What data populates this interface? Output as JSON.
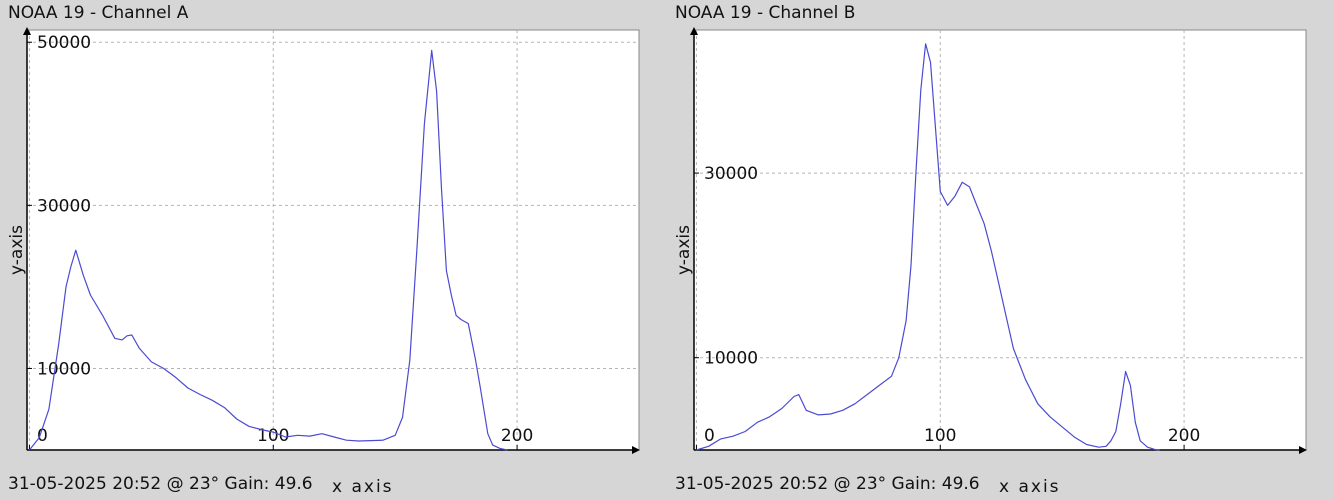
{
  "chart_data": [
    {
      "type": "line",
      "title": "NOAA 19 - Channel A",
      "footer": "31-05-2025 20:52 @ 23° Gain: 49.6",
      "xlabel": "x axis",
      "ylabel": "y-axis",
      "xlim": [
        -1,
        250
      ],
      "ylim": [
        0,
        51500
      ],
      "x_ticks": [
        0,
        100,
        200
      ],
      "x_tick_labels": [
        "0",
        "100",
        "200"
      ],
      "y_ticks": [
        0,
        10000,
        30000,
        50000
      ],
      "y_tick_labels": [
        "0",
        "10000",
        "30000",
        "50000"
      ],
      "grid": true,
      "line_color": "#4b4bd2",
      "series": [
        {
          "x": [
            0,
            4,
            8,
            12,
            15,
            17,
            19,
            22,
            25,
            30,
            35,
            38,
            40,
            42,
            45,
            50,
            55,
            60,
            65,
            70,
            75,
            80,
            85,
            90,
            95,
            100,
            105,
            110,
            115,
            120,
            125,
            130,
            135,
            140,
            145,
            150,
            153,
            156,
            159,
            162,
            165,
            167,
            169,
            171,
            173,
            175,
            177,
            180,
            183,
            185,
            188,
            190,
            193,
            196
          ],
          "values": [
            0,
            1500,
            5000,
            13000,
            20000,
            22500,
            24500,
            21500,
            19000,
            16500,
            13700,
            13500,
            14000,
            14100,
            12500,
            10800,
            10000,
            8900,
            7600,
            6800,
            6100,
            5200,
            3800,
            2900,
            2500,
            2200,
            1600,
            1800,
            1700,
            2000,
            1600,
            1200,
            1100,
            1150,
            1200,
            1800,
            4000,
            11000,
            25000,
            40000,
            49000,
            44000,
            32000,
            22000,
            19000,
            16500,
            16000,
            15500,
            11000,
            7500,
            2000,
            600,
            200,
            0
          ]
        }
      ]
    },
    {
      "type": "line",
      "title": "NOAA 19 - Channel B",
      "footer": "31-05-2025 20:52 @ 23° Gain: 49.6",
      "xlabel": "x axis",
      "ylabel": "y-axis",
      "xlim": [
        -1,
        250
      ],
      "ylim": [
        0,
        45500
      ],
      "x_ticks": [
        0,
        100,
        200
      ],
      "x_tick_labels": [
        "0",
        "100",
        "200"
      ],
      "y_ticks": [
        0,
        10000,
        30000
      ],
      "y_tick_labels": [
        "0",
        "10000",
        "30000"
      ],
      "grid": true,
      "line_color": "#4b4bd2",
      "series": [
        {
          "x": [
            0,
            5,
            10,
            15,
            20,
            25,
            30,
            35,
            40,
            42,
            45,
            50,
            55,
            60,
            65,
            70,
            75,
            80,
            83,
            86,
            88,
            90,
            92,
            94,
            96,
            98,
            100,
            103,
            106,
            109,
            112,
            115,
            118,
            121,
            124,
            127,
            130,
            135,
            140,
            145,
            150,
            155,
            160,
            165,
            168,
            170,
            172,
            174,
            176,
            178,
            180,
            182,
            185,
            188,
            190
          ],
          "values": [
            0,
            400,
            1200,
            1500,
            2000,
            3000,
            3600,
            4500,
            5800,
            6000,
            4300,
            3800,
            3900,
            4300,
            5000,
            6000,
            7000,
            8000,
            10000,
            14000,
            20000,
            30000,
            39000,
            44000,
            42000,
            35000,
            28000,
            26500,
            27500,
            29000,
            28500,
            26500,
            24500,
            21500,
            18000,
            14500,
            11000,
            7600,
            5000,
            3600,
            2500,
            1400,
            600,
            300,
            400,
            1000,
            2000,
            5000,
            8500,
            7000,
            3000,
            1000,
            300,
            50,
            0
          ]
        }
      ]
    }
  ]
}
